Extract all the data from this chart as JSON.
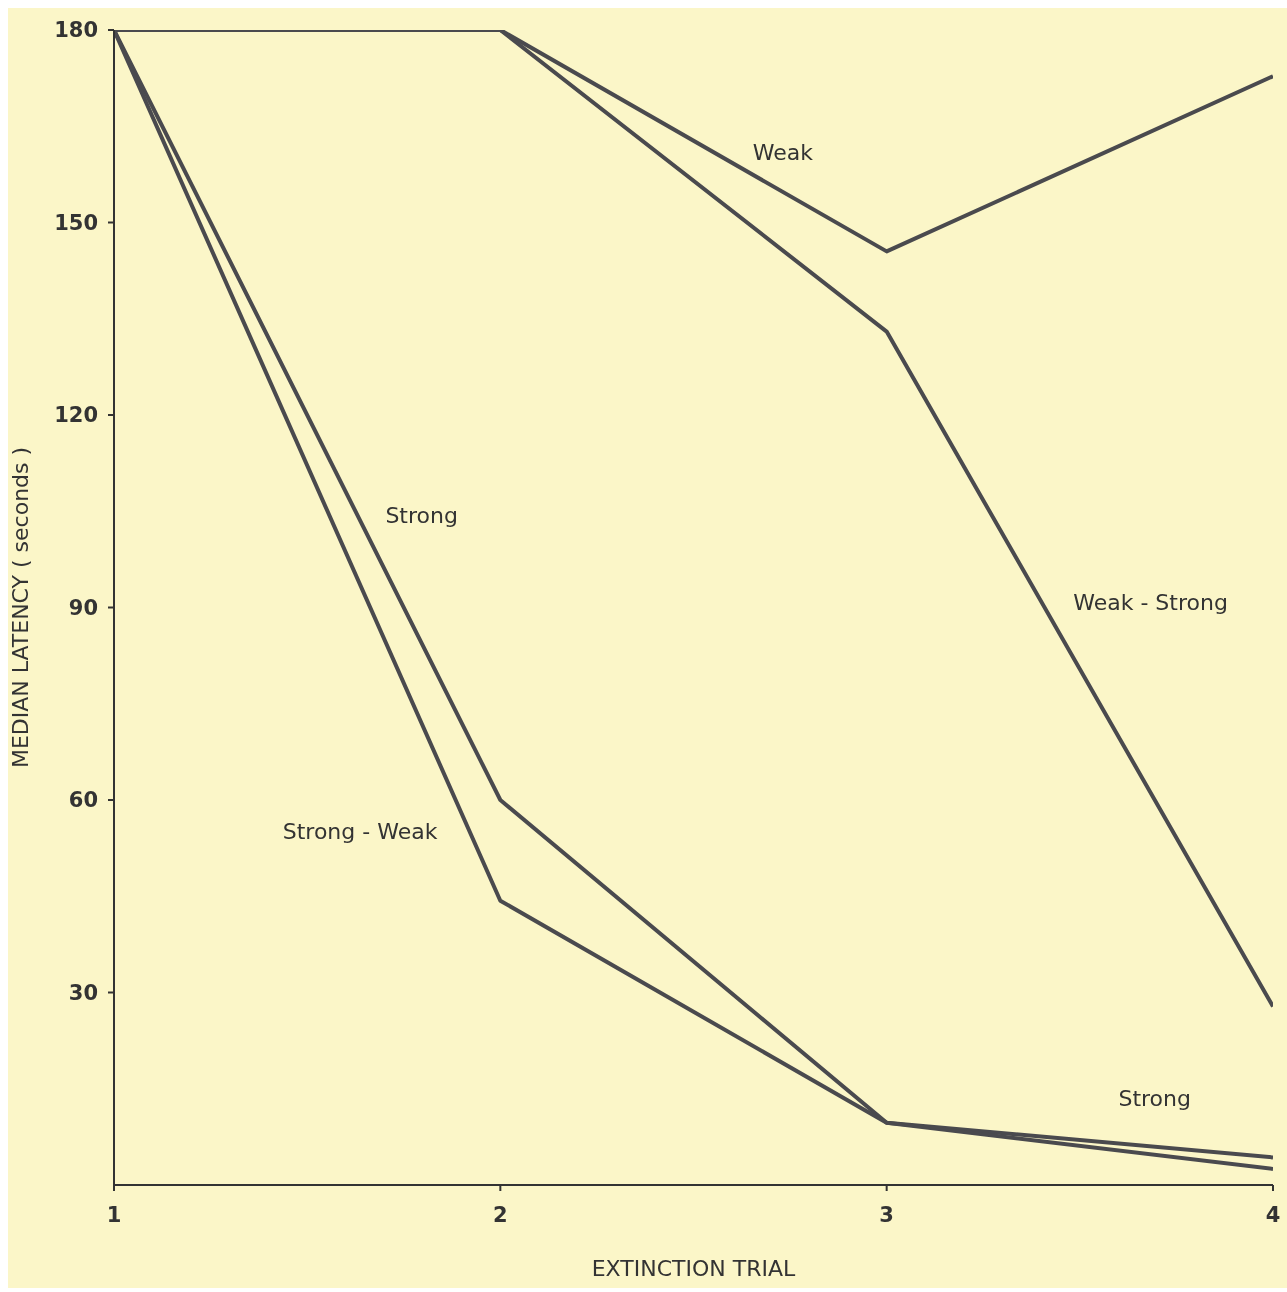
{
  "chart_data": {
    "type": "line",
    "xlabel": "EXTINCTION TRIAL",
    "ylabel": "MEDIAN LATENCY ( seconds )",
    "x": [
      1,
      2,
      3,
      4
    ],
    "xlim": [
      1,
      4
    ],
    "xticks": [
      1,
      2,
      3,
      4
    ],
    "ylim": [
      0,
      180
    ],
    "yticks": [
      30,
      60,
      90,
      120,
      150,
      180
    ],
    "marker": "none",
    "line_style": "solid",
    "series": [
      {
        "name": "Weak",
        "color": "#4a4a4e",
        "values": [
          180,
          180,
          145.5,
          172.8
        ]
      },
      {
        "name": "Weak - Strong",
        "color": "#4a4a4e",
        "values": [
          180,
          180,
          133,
          27.8
        ]
      },
      {
        "name": "Strong",
        "color": "#4a4a4e",
        "values": [
          180,
          60,
          9.7,
          4.3
        ]
      },
      {
        "name": "Strong - Weak",
        "color": "#4a4a4e",
        "values": [
          180,
          44.3,
          9.7,
          2.5
        ]
      }
    ]
  }
}
